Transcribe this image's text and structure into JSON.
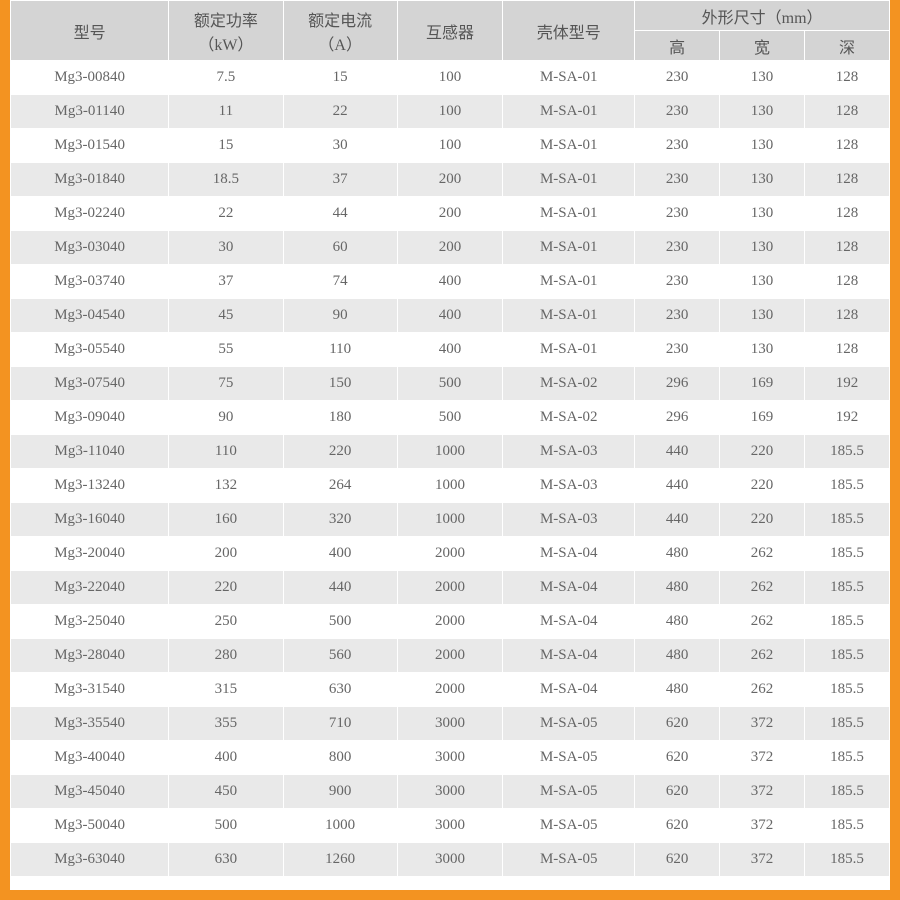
{
  "styles": {
    "page_bg": "#f39321",
    "header_bg": "#d4d4d4",
    "row_odd_bg": "#ffffff",
    "row_even_bg": "#e9e9e9",
    "border_color": "#ffffff",
    "header_text_color": "#555555",
    "cell_text_color": "#666666",
    "header_fontsize": 16,
    "cell_fontsize": 15,
    "font_family": "SimSun",
    "col_widths_pct": [
      18,
      13,
      13,
      12,
      15,
      9.66,
      9.66,
      9.66
    ]
  },
  "table": {
    "headers": {
      "model": "型号",
      "power": "额定功率",
      "power_unit": "（kW）",
      "current": "额定电流",
      "current_unit": "（A）",
      "transformer": "互感器",
      "shell": "壳体型号",
      "dim_group": "外形尺寸（mm）",
      "h": "高",
      "w": "宽",
      "d": "深"
    },
    "rows": [
      [
        "Mg3-00840",
        "7.5",
        "15",
        "100",
        "M-SA-01",
        "230",
        "130",
        "128"
      ],
      [
        "Mg3-01140",
        "11",
        "22",
        "100",
        "M-SA-01",
        "230",
        "130",
        "128"
      ],
      [
        "Mg3-01540",
        "15",
        "30",
        "100",
        "M-SA-01",
        "230",
        "130",
        "128"
      ],
      [
        "Mg3-01840",
        "18.5",
        "37",
        "200",
        "M-SA-01",
        "230",
        "130",
        "128"
      ],
      [
        "Mg3-02240",
        "22",
        "44",
        "200",
        "M-SA-01",
        "230",
        "130",
        "128"
      ],
      [
        "Mg3-03040",
        "30",
        "60",
        "200",
        "M-SA-01",
        "230",
        "130",
        "128"
      ],
      [
        "Mg3-03740",
        "37",
        "74",
        "400",
        "M-SA-01",
        "230",
        "130",
        "128"
      ],
      [
        "Mg3-04540",
        "45",
        "90",
        "400",
        "M-SA-01",
        "230",
        "130",
        "128"
      ],
      [
        "Mg3-05540",
        "55",
        "110",
        "400",
        "M-SA-01",
        "230",
        "130",
        "128"
      ],
      [
        "Mg3-07540",
        "75",
        "150",
        "500",
        "M-SA-02",
        "296",
        "169",
        "192"
      ],
      [
        "Mg3-09040",
        "90",
        "180",
        "500",
        "M-SA-02",
        "296",
        "169",
        "192"
      ],
      [
        "Mg3-11040",
        "110",
        "220",
        "1000",
        "M-SA-03",
        "440",
        "220",
        "185.5"
      ],
      [
        "Mg3-13240",
        "132",
        "264",
        "1000",
        "M-SA-03",
        "440",
        "220",
        "185.5"
      ],
      [
        "Mg3-16040",
        "160",
        "320",
        "1000",
        "M-SA-03",
        "440",
        "220",
        "185.5"
      ],
      [
        "Mg3-20040",
        "200",
        "400",
        "2000",
        "M-SA-04",
        "480",
        "262",
        "185.5"
      ],
      [
        "Mg3-22040",
        "220",
        "440",
        "2000",
        "M-SA-04",
        "480",
        "262",
        "185.5"
      ],
      [
        "Mg3-25040",
        "250",
        "500",
        "2000",
        "M-SA-04",
        "480",
        "262",
        "185.5"
      ],
      [
        "Mg3-28040",
        "280",
        "560",
        "2000",
        "M-SA-04",
        "480",
        "262",
        "185.5"
      ],
      [
        "Mg3-31540",
        "315",
        "630",
        "2000",
        "M-SA-04",
        "480",
        "262",
        "185.5"
      ],
      [
        "Mg3-35540",
        "355",
        "710",
        "3000",
        "M-SA-05",
        "620",
        "372",
        "185.5"
      ],
      [
        "Mg3-40040",
        "400",
        "800",
        "3000",
        "M-SA-05",
        "620",
        "372",
        "185.5"
      ],
      [
        "Mg3-45040",
        "450",
        "900",
        "3000",
        "M-SA-05",
        "620",
        "372",
        "185.5"
      ],
      [
        "Mg3-50040",
        "500",
        "1000",
        "3000",
        "M-SA-05",
        "620",
        "372",
        "185.5"
      ],
      [
        "Mg3-63040",
        "630",
        "1260",
        "3000",
        "M-SA-05",
        "620",
        "372",
        "185.5"
      ]
    ]
  }
}
